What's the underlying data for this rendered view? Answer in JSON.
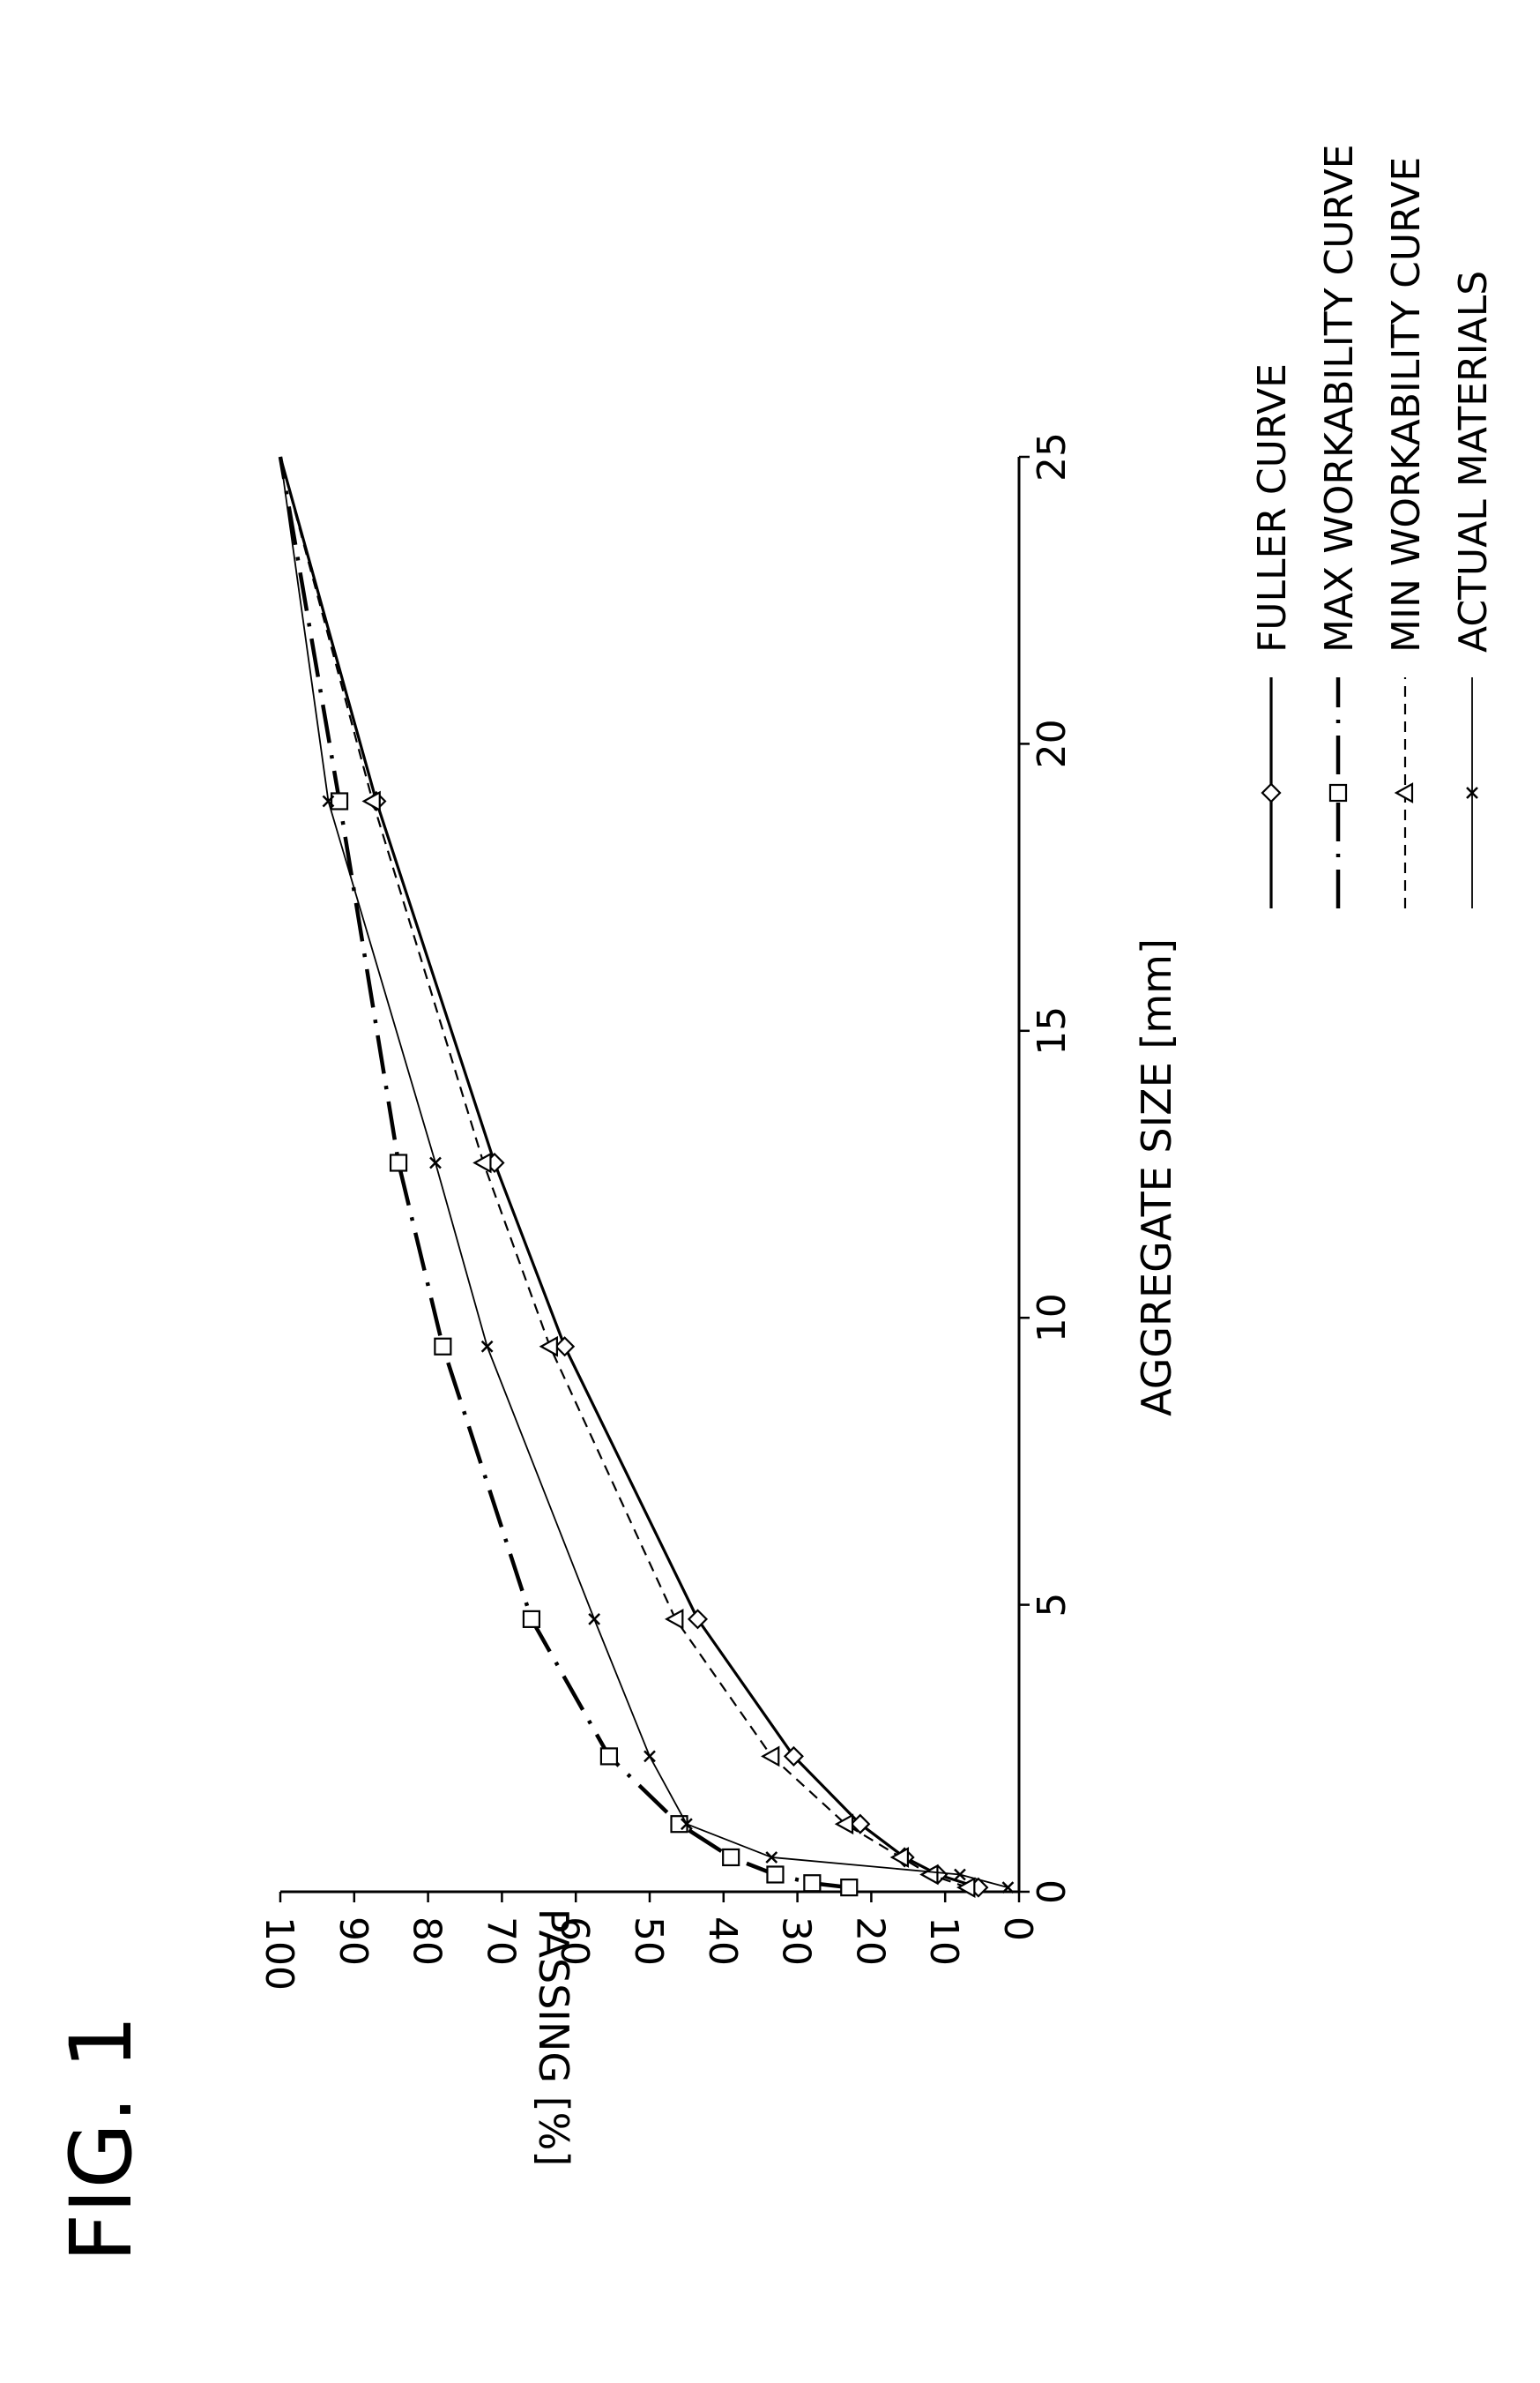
{
  "figure_label": "FIG. 1",
  "chart_data": {
    "type": "line",
    "orientation": "rotated-90-ccw",
    "xlabel": "AGGREGATE SIZE [mm]",
    "ylabel": "PASSING [%]",
    "xlim": [
      0,
      25
    ],
    "ylim": [
      0,
      100
    ],
    "x_ticks": [
      "0",
      "5",
      "10",
      "15",
      "20",
      "25"
    ],
    "y_ticks": [
      "0",
      "10",
      "20",
      "30",
      "40",
      "50",
      "60",
      "70",
      "80",
      "90",
      "100"
    ],
    "grid": false,
    "legend_position": "right",
    "series": [
      {
        "name": "FULLER CURVE",
        "line_style": "solid-thick",
        "marker": "diamond",
        "x": [
          0.075,
          0.3,
          0.6,
          1.18,
          2.36,
          4.75,
          9.5,
          12.7,
          19.0,
          25.0
        ],
        "y": [
          5.5,
          11,
          15.5,
          21.5,
          30.5,
          43.5,
          61.5,
          71,
          87,
          100
        ]
      },
      {
        "name": "MAX WORKABILITY CURVE",
        "line_style": "long-dash-dot",
        "marker": "square",
        "x": [
          0.075,
          0.15,
          0.3,
          0.6,
          1.18,
          2.36,
          4.75,
          9.5,
          12.7,
          19.0,
          25.0
        ],
        "y": [
          23,
          28,
          33,
          39,
          46,
          55.5,
          66,
          78,
          84,
          92,
          100
        ]
      },
      {
        "name": "MIN WORKABILITY CURVE",
        "line_style": "short-dash",
        "marker": "triangle",
        "x": [
          0.075,
          0.3,
          0.6,
          1.18,
          2.36,
          4.75,
          9.5,
          12.7,
          19.0,
          25.0
        ],
        "y": [
          7,
          12,
          16,
          23.5,
          33.5,
          46.5,
          63.5,
          72.5,
          87.5,
          100
        ]
      },
      {
        "name": "ACTUAL MATERIALS",
        "line_style": "solid-thin",
        "marker": "x",
        "x": [
          0.075,
          0.3,
          0.6,
          1.18,
          2.36,
          4.75,
          9.5,
          12.7,
          19.0,
          25.0
        ],
        "y": [
          1.5,
          8,
          33.5,
          45,
          50,
          57.5,
          72,
          79,
          93.5,
          100
        ]
      }
    ]
  }
}
